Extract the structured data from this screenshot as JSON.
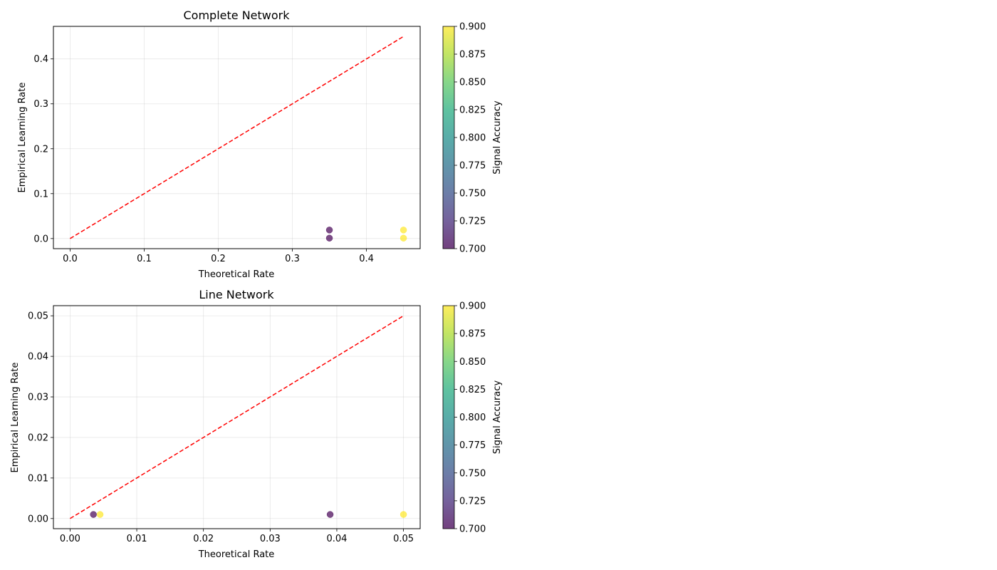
{
  "chart_data": [
    {
      "type": "scatter",
      "title": "Complete Network",
      "xlabel": "Theoretical Rate",
      "ylabel": "Empirical Learning Rate",
      "xlim": [
        -0.0225,
        0.4725
      ],
      "ylim": [
        -0.0225,
        0.4725
      ],
      "xticks": [
        0.0,
        0.1,
        0.2,
        0.3,
        0.4
      ],
      "xtick_labels": [
        "0.0",
        "0.1",
        "0.2",
        "0.3",
        "0.4"
      ],
      "yticks": [
        0.0,
        0.1,
        0.2,
        0.3,
        0.4
      ],
      "ytick_labels": [
        "0.0",
        "0.1",
        "0.2",
        "0.3",
        "0.4"
      ],
      "grid": true,
      "reference_line": {
        "x": [
          0,
          0.45
        ],
        "y": [
          0,
          0.45
        ],
        "color": "#ff0000",
        "style": "dashed"
      },
      "points": [
        {
          "x": 0.35,
          "y": 0.019,
          "accuracy": 0.7
        },
        {
          "x": 0.35,
          "y": 0.001,
          "accuracy": 0.7
        },
        {
          "x": 0.45,
          "y": 0.019,
          "accuracy": 0.9
        },
        {
          "x": 0.45,
          "y": 0.001,
          "accuracy": 0.9
        }
      ],
      "colorbar": {
        "label": "Signal Accuracy",
        "range": [
          0.7,
          0.9
        ],
        "ticks": [
          "0.700",
          "0.725",
          "0.750",
          "0.775",
          "0.800",
          "0.825",
          "0.850",
          "0.875",
          "0.900"
        ]
      }
    },
    {
      "type": "scatter",
      "title": "Line Network",
      "xlabel": "Theoretical Rate",
      "ylabel": "Empirical Learning Rate",
      "xlim": [
        -0.0025,
        0.0525
      ],
      "ylim": [
        -0.0025,
        0.0525
      ],
      "xticks": [
        0.0,
        0.01,
        0.02,
        0.03,
        0.04,
        0.05
      ],
      "xtick_labels": [
        "0.00",
        "0.01",
        "0.02",
        "0.03",
        "0.04",
        "0.05"
      ],
      "yticks": [
        0.0,
        0.01,
        0.02,
        0.03,
        0.04,
        0.05
      ],
      "ytick_labels": [
        "0.00",
        "0.01",
        "0.02",
        "0.03",
        "0.04",
        "0.05"
      ],
      "grid": true,
      "reference_line": {
        "x": [
          0,
          0.05
        ],
        "y": [
          0,
          0.05
        ],
        "color": "#ff0000",
        "style": "dashed"
      },
      "points": [
        {
          "x": 0.0035,
          "y": 0.001,
          "accuracy": 0.7
        },
        {
          "x": 0.0045,
          "y": 0.001,
          "accuracy": 0.9
        },
        {
          "x": 0.039,
          "y": 0.001,
          "accuracy": 0.7
        },
        {
          "x": 0.05,
          "y": 0.001,
          "accuracy": 0.9
        }
      ],
      "colorbar": {
        "label": "Signal Accuracy",
        "range": [
          0.7,
          0.9
        ],
        "ticks": [
          "0.700",
          "0.725",
          "0.750",
          "0.775",
          "0.800",
          "0.825",
          "0.850",
          "0.875",
          "0.900"
        ]
      }
    }
  ]
}
